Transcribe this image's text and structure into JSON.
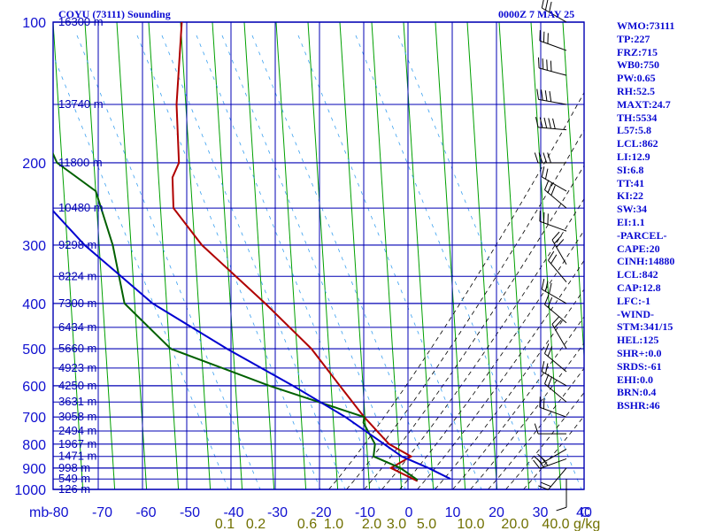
{
  "header": {
    "station": "COYU (73111) Sounding",
    "time": "0000Z  7 MAY 25"
  },
  "indices": [
    "WMO:73111",
    "TP:227",
    "FRZ:715",
    "WB0:750",
    "PW:0.65",
    "RH:52.5",
    "MAXT:24.7",
    "TH:5534",
    "L57:5.8",
    "LCL:862",
    "LI:12.9",
    "SI:6.8",
    "TT:41",
    "KI:22",
    "SW:34",
    "EI:1.1",
    "-PARCEL-",
    "CAPE:20",
    "CINH:14880",
    "LCL:842",
    "CAP:12.8",
    "LFC:-1",
    "-WIND-",
    "STM:341/15",
    "HEL:125",
    "SHR+:0.0",
    "SRDS:-61",
    "EHI:0.0",
    "BRN:0.4",
    "BSHR:46"
  ],
  "colors": {
    "isobars": "#0000b4",
    "isotherms": "#0000b4",
    "dry_adiabats": "#00a000",
    "moist_adiabats": "#000000",
    "mixing_ratio": "#3aa0f0",
    "temperature": "#b00000",
    "dewpoint": "#006000",
    "parcel": "#0000d0",
    "axis_text": "#1010d0",
    "mixing_text": "#707000"
  },
  "chart_data": {
    "type": "skew-t",
    "pressure_labels": [
      "100",
      "200",
      "300",
      "400",
      "500",
      "600",
      "700",
      "800",
      "900",
      "1000"
    ],
    "pressure_levels_mb": [
      100,
      200,
      300,
      400,
      500,
      600,
      700,
      800,
      900,
      1000
    ],
    "x_tick_labels": [
      "-80",
      "-70",
      "-60",
      "-50",
      "-40",
      "-30",
      "-20",
      "-10",
      "0",
      "10",
      "20",
      "30",
      "40"
    ],
    "x_ticks_c": [
      -80,
      -70,
      -60,
      -50,
      -40,
      -30,
      -20,
      -10,
      0,
      10,
      20,
      30,
      40
    ],
    "unit_label_p": "mb",
    "unit_label_t": "C",
    "mixing_ratio_labels": [
      "0.1",
      "0.2",
      "0.6",
      "1.0",
      "2.0",
      "3.0",
      "5.0",
      "10.0",
      "20.0",
      "40.0"
    ],
    "mixing_ratio_unit": "g/kg",
    "height_labels": [
      {
        "p": 100,
        "text": "16300 m"
      },
      {
        "p": 150,
        "text": "13740 m"
      },
      {
        "p": 200,
        "text": "11800 m"
      },
      {
        "p": 250,
        "text": "10480 m"
      },
      {
        "p": 300,
        "text": "9298 m"
      },
      {
        "p": 350,
        "text": "8224 m"
      },
      {
        "p": 400,
        "text": "7300 m"
      },
      {
        "p": 450,
        "text": "6434 m"
      },
      {
        "p": 500,
        "text": "5660 m"
      },
      {
        "p": 550,
        "text": "4923 m"
      },
      {
        "p": 600,
        "text": "4250 m"
      },
      {
        "p": 650,
        "text": "3631 m"
      },
      {
        "p": 700,
        "text": "3058 m"
      },
      {
        "p": 750,
        "text": "2494 m"
      },
      {
        "p": 800,
        "text": "1967 m"
      },
      {
        "p": 850,
        "text": "1471 m"
      },
      {
        "p": 900,
        "text": "998 m"
      },
      {
        "p": 950,
        "text": "549 m"
      },
      {
        "p": 1000,
        "text": "126 m"
      }
    ],
    "series": [
      {
        "name": "temperature",
        "points": [
          [
            100,
            -60
          ],
          [
            150,
            -59
          ],
          [
            200,
            -57
          ],
          [
            215,
            -58
          ],
          [
            250,
            -57
          ],
          [
            300,
            -50
          ],
          [
            400,
            -35
          ],
          [
            500,
            -24
          ],
          [
            600,
            -17
          ],
          [
            700,
            -11
          ],
          [
            800,
            -5
          ],
          [
            850,
            0
          ],
          [
            900,
            -4
          ],
          [
            960,
            2
          ]
        ]
      },
      {
        "name": "dewpoint",
        "points": [
          [
            170,
            -87
          ],
          [
            200,
            -83
          ],
          [
            230,
            -74
          ],
          [
            300,
            -69
          ],
          [
            400,
            -65
          ],
          [
            500,
            -54
          ],
          [
            600,
            -32
          ],
          [
            700,
            -11
          ],
          [
            720,
            -11
          ],
          [
            800,
            -8
          ],
          [
            850,
            -8
          ],
          [
            900,
            -2
          ],
          [
            955,
            2
          ]
        ]
      },
      {
        "name": "parcel",
        "points": [
          [
            230,
            -87
          ],
          [
            300,
            -75
          ],
          [
            400,
            -59
          ],
          [
            500,
            -42
          ],
          [
            600,
            -27
          ],
          [
            700,
            -15
          ],
          [
            850,
            -2
          ],
          [
            900,
            4
          ],
          [
            950,
            9
          ]
        ]
      }
    ],
    "wind_barbs": [
      {
        "p": 100,
        "dir": 300,
        "spd": 25
      },
      {
        "p": 115,
        "dir": 290,
        "spd": 30
      },
      {
        "p": 130,
        "dir": 285,
        "spd": 35
      },
      {
        "p": 150,
        "dir": 280,
        "spd": 40
      },
      {
        "p": 170,
        "dir": 275,
        "spd": 45
      },
      {
        "p": 200,
        "dir": 270,
        "spd": 40
      },
      {
        "p": 230,
        "dir": 300,
        "spd": 20
      },
      {
        "p": 250,
        "dir": 310,
        "spd": 25
      },
      {
        "p": 280,
        "dir": 290,
        "spd": 25
      },
      {
        "p": 330,
        "dir": 330,
        "spd": 25
      },
      {
        "p": 360,
        "dir": 320,
        "spd": 20
      },
      {
        "p": 400,
        "dir": 300,
        "spd": 25
      },
      {
        "p": 440,
        "dir": 310,
        "spd": 20
      },
      {
        "p": 500,
        "dir": 330,
        "spd": 15
      },
      {
        "p": 560,
        "dir": 310,
        "spd": 20
      },
      {
        "p": 600,
        "dir": 300,
        "spd": 20
      },
      {
        "p": 650,
        "dir": 310,
        "spd": 15
      },
      {
        "p": 700,
        "dir": 290,
        "spd": 15
      },
      {
        "p": 760,
        "dir": 270,
        "spd": 10
      },
      {
        "p": 820,
        "dir": 240,
        "spd": 20
      },
      {
        "p": 860,
        "dir": 250,
        "spd": 25
      },
      {
        "p": 900,
        "dir": 220,
        "spd": 15
      },
      {
        "p": 950,
        "dir": 180,
        "spd": 5
      }
    ]
  }
}
